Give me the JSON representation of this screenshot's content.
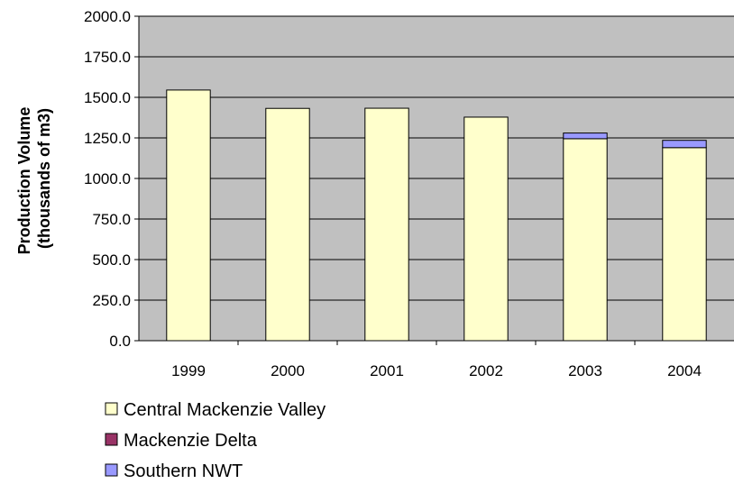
{
  "chart_data": {
    "type": "bar",
    "stacked": true,
    "categories": [
      "1999",
      "2000",
      "2001",
      "2002",
      "2003",
      "2004"
    ],
    "series": [
      {
        "name": "Central Mackenzie Valley",
        "color": "#FFFFCC",
        "values": [
          1545,
          1432,
          1433,
          1378,
          1245,
          1190
        ]
      },
      {
        "name": "Mackenzie Delta",
        "color": "#993366",
        "values": [
          0,
          0,
          0,
          0,
          0,
          0
        ]
      },
      {
        "name": "Southern NWT",
        "color": "#9999FF",
        "values": [
          0,
          0,
          0,
          0,
          35,
          45
        ]
      }
    ],
    "ylabel": [
      "Production Volume",
      "(thousands of m3)"
    ],
    "ylim": [
      0,
      2000
    ],
    "yticks": [
      "0.0",
      "250.0",
      "500.0",
      "750.0",
      "1000.0",
      "1250.0",
      "1500.0",
      "1750.0",
      "2000.0"
    ],
    "grid": true,
    "plot_background": "#C0C0C0",
    "legend_position": "bottom-left"
  }
}
